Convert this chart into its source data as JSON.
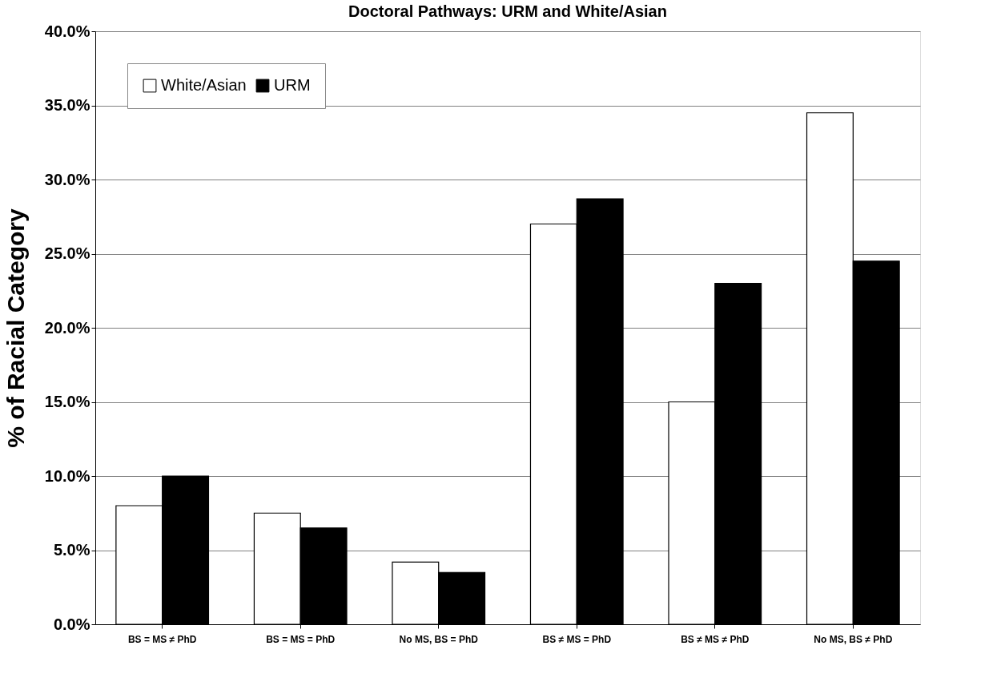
{
  "chart_data": {
    "type": "bar",
    "title": "Doctoral Pathways: URM and White/Asian",
    "ylabel": "% of Racial Category",
    "categories": [
      "BS = MS ≠ PhD",
      "BS = MS = PhD",
      "No MS, BS = PhD",
      "BS ≠ MS = PhD",
      "BS ≠ MS ≠ PhD",
      "No MS, BS ≠ PhD"
    ],
    "series": [
      {
        "name": "White/Asian",
        "color": "#ffffff",
        "values": [
          8.0,
          7.5,
          4.2,
          27.0,
          15.0,
          34.5
        ]
      },
      {
        "name": "URM",
        "color": "#000000",
        "values": [
          10.0,
          6.5,
          3.5,
          28.7,
          23.0,
          24.5
        ]
      }
    ],
    "ylim": [
      0,
      40
    ],
    "yticks": [
      {
        "value": 0,
        "label": "0.0%"
      },
      {
        "value": 5,
        "label": "5.0%"
      },
      {
        "value": 10,
        "label": "10.0%"
      },
      {
        "value": 15,
        "label": "15.0%"
      },
      {
        "value": 20,
        "label": "20.0%"
      },
      {
        "value": 25,
        "label": "25.0%"
      },
      {
        "value": 30,
        "label": "30.0%"
      },
      {
        "value": 35,
        "label": "35.0%"
      },
      {
        "value": 40,
        "label": "40.0%"
      }
    ],
    "grid": "y",
    "legend": "top left"
  }
}
